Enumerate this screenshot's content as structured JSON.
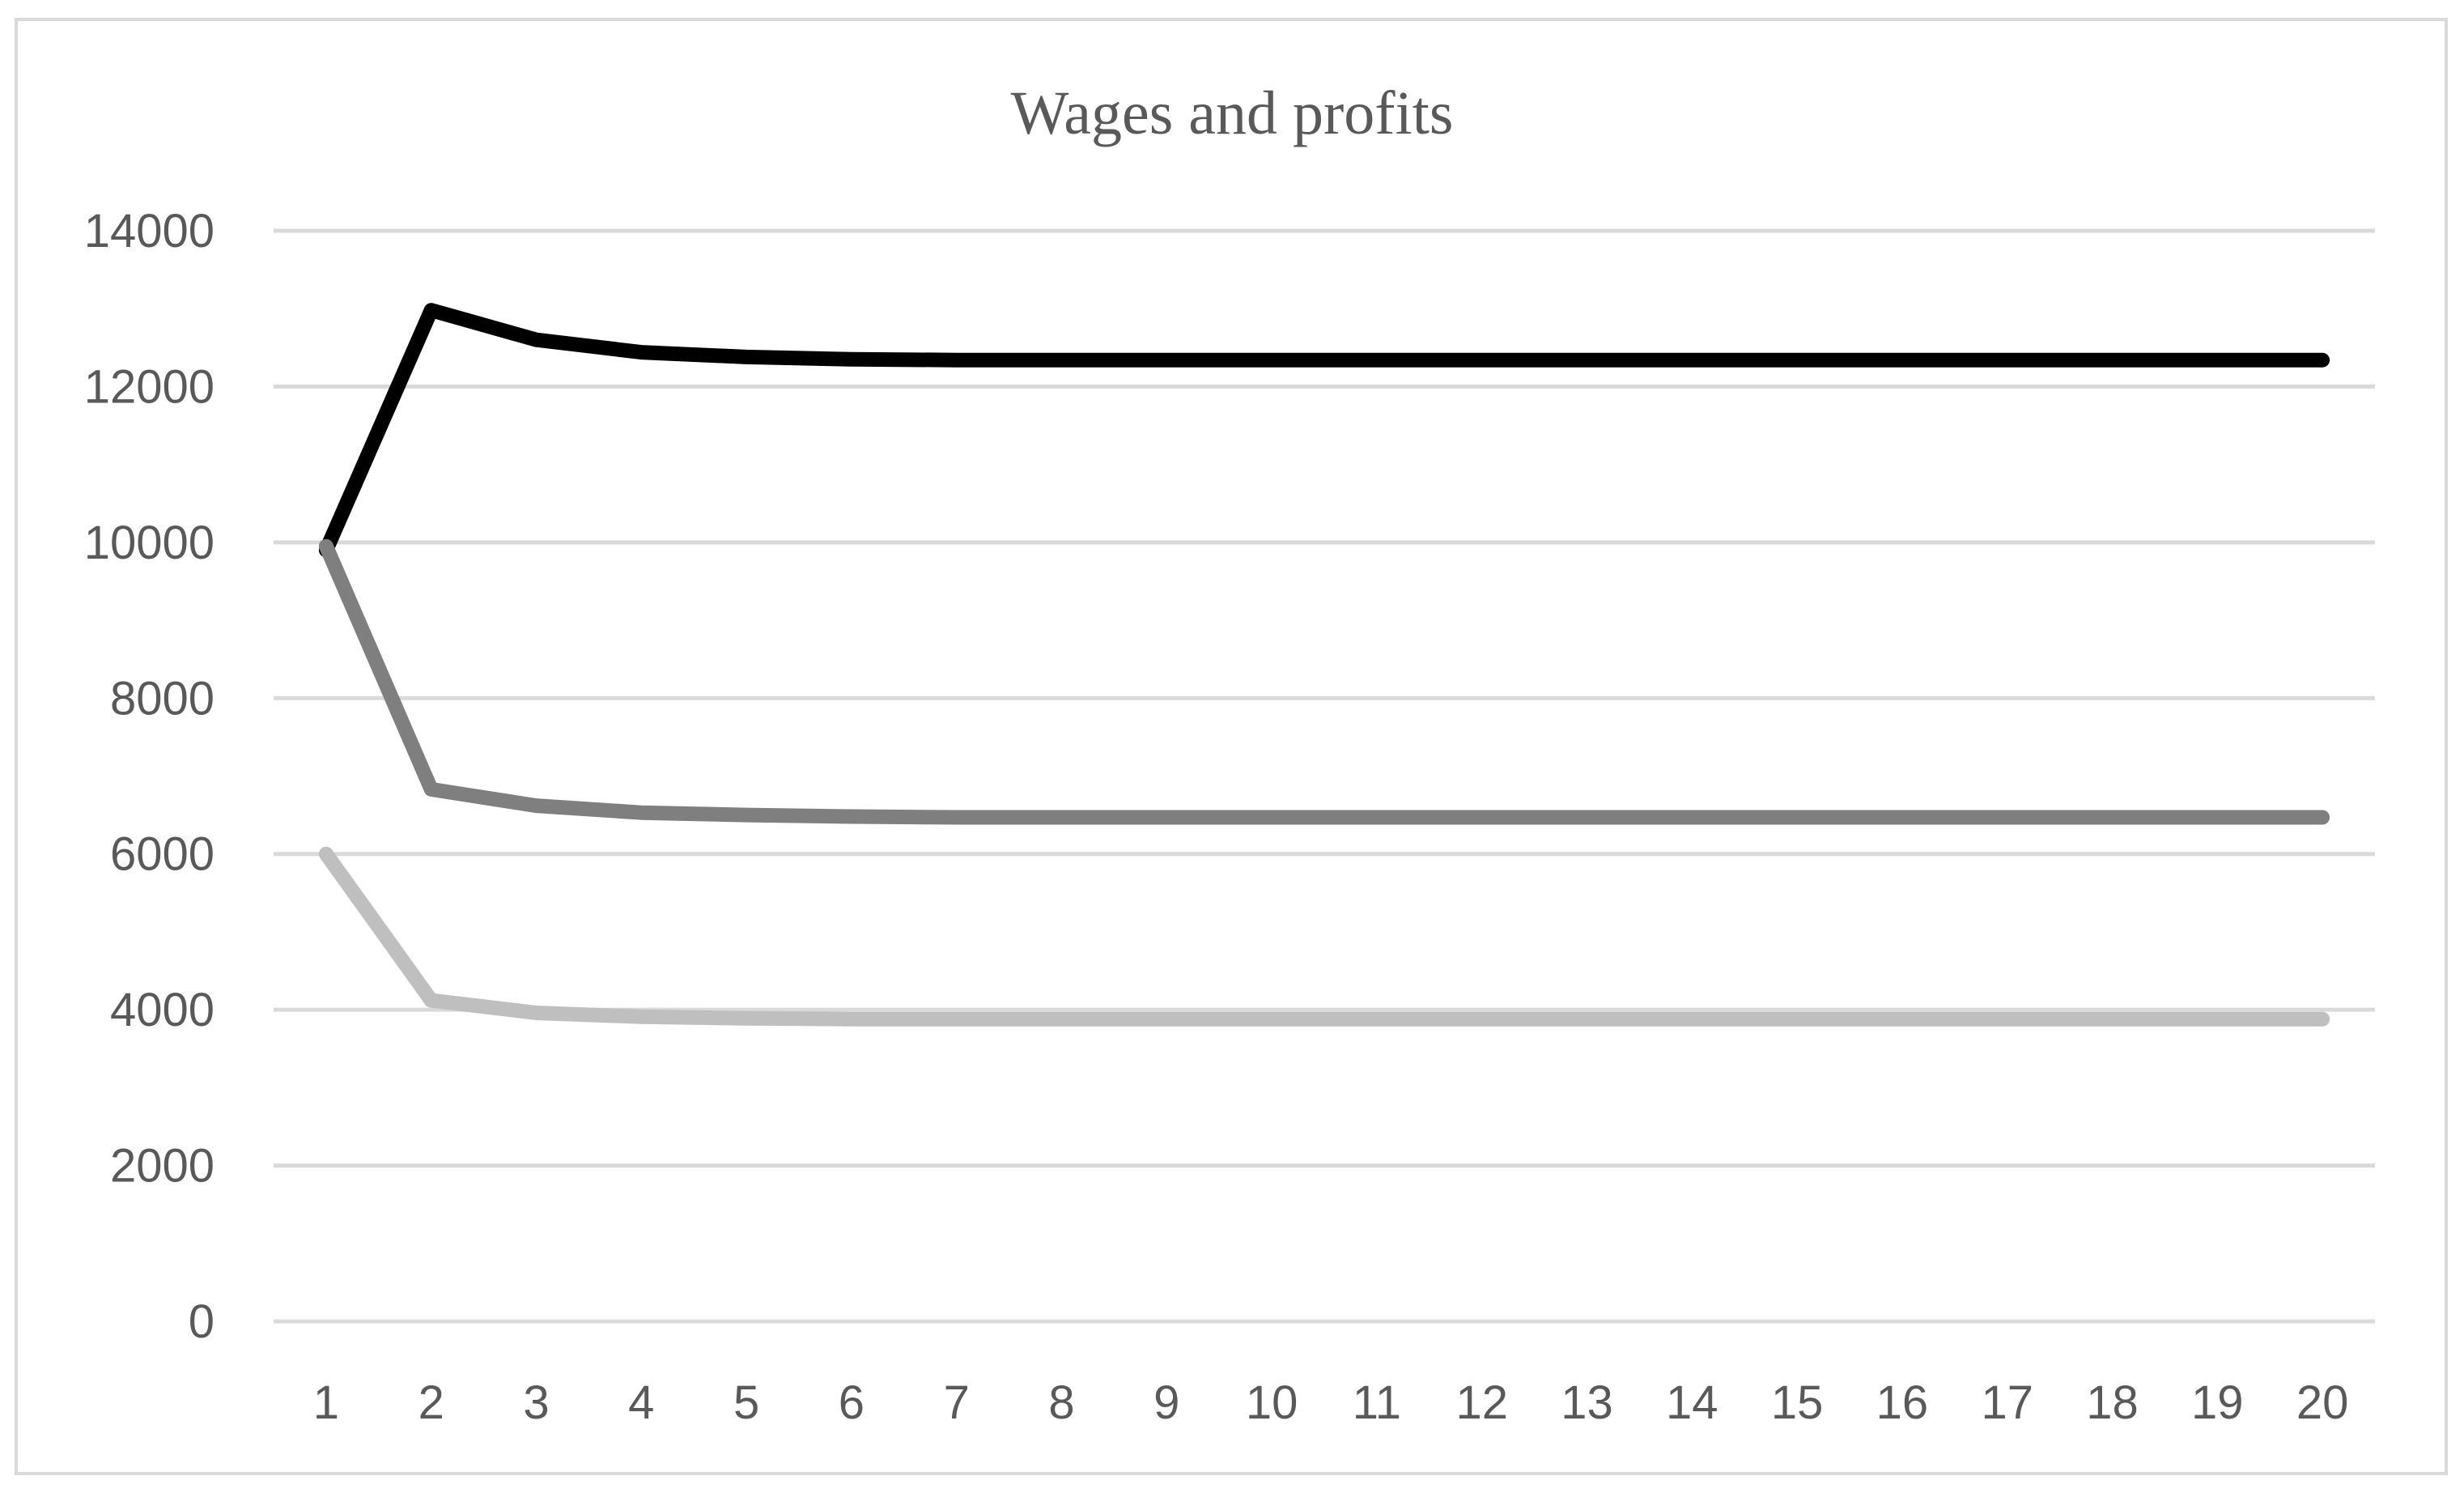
{
  "chart_data": {
    "type": "line",
    "title": "Wages and profits",
    "xlabel": "",
    "ylabel": "",
    "x": [
      1,
      2,
      3,
      4,
      5,
      6,
      7,
      8,
      9,
      10,
      11,
      12,
      13,
      14,
      15,
      16,
      17,
      18,
      19,
      20
    ],
    "ylim": [
      0,
      14000
    ],
    "yticks": [
      0,
      2000,
      4000,
      6000,
      8000,
      10000,
      12000,
      14000
    ],
    "grid": true,
    "legend": "none",
    "series": [
      {
        "color": "#000000",
        "values": [
          9900,
          12980,
          12600,
          12440,
          12380,
          12350,
          12340,
          12340,
          12340,
          12340,
          12340,
          12340,
          12340,
          12340,
          12340,
          12340,
          12340,
          12340,
          12340,
          12340
        ]
      },
      {
        "color": "#7f7f7f",
        "values": [
          9950,
          6830,
          6620,
          6530,
          6500,
          6480,
          6470,
          6470,
          6470,
          6470,
          6470,
          6470,
          6470,
          6470,
          6470,
          6470,
          6470,
          6470,
          6470,
          6470
        ]
      },
      {
        "color": "#bfbfbf",
        "values": [
          6000,
          4120,
          3960,
          3910,
          3890,
          3880,
          3880,
          3880,
          3880,
          3880,
          3880,
          3880,
          3880,
          3880,
          3880,
          3880,
          3880,
          3880,
          3880,
          3880
        ]
      }
    ]
  }
}
